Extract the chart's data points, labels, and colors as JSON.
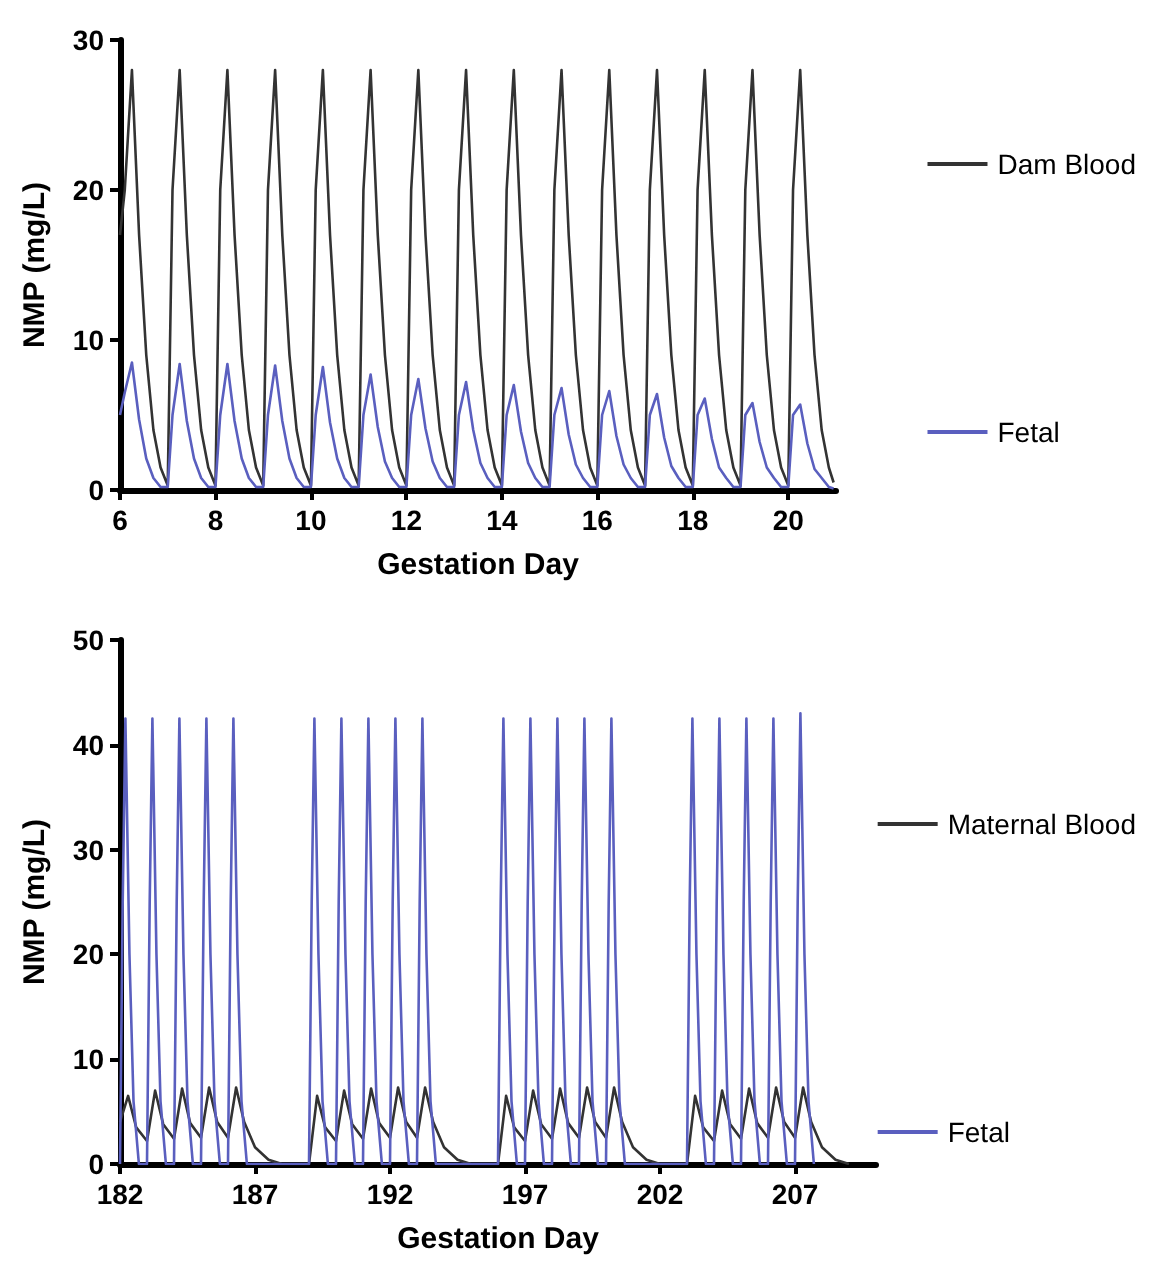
{
  "chart_data": [
    {
      "type": "line",
      "xlabel": "Gestation Day",
      "ylabel": "NMP (mg/L)",
      "xlim": [
        6,
        21
      ],
      "xticks": [
        6,
        8,
        10,
        12,
        14,
        16,
        18,
        20
      ],
      "ylim": [
        0,
        30
      ],
      "yticks": [
        0,
        10,
        20,
        30
      ],
      "grid": false,
      "legend": "right",
      "marker": "none",
      "line_style": "solid",
      "series": [
        {
          "name": "Dam Blood",
          "color": "#333333",
          "x": [
            6,
            6.1,
            6.25,
            6.4,
            6.55,
            6.7,
            6.85,
            7,
            7.1,
            7.25,
            7.4,
            7.55,
            7.7,
            7.85,
            8,
            8.1,
            8.25,
            8.4,
            8.55,
            8.7,
            8.85,
            9,
            9.1,
            9.25,
            9.4,
            9.55,
            9.7,
            9.85,
            10,
            10.1,
            10.25,
            10.4,
            10.55,
            10.7,
            10.85,
            11,
            11.1,
            11.25,
            11.4,
            11.55,
            11.7,
            11.85,
            12,
            12.1,
            12.25,
            12.4,
            12.55,
            12.7,
            12.85,
            13,
            13.1,
            13.25,
            13.4,
            13.55,
            13.7,
            13.85,
            14,
            14.1,
            14.25,
            14.4,
            14.55,
            14.7,
            14.85,
            15,
            15.1,
            15.25,
            15.4,
            15.55,
            15.7,
            15.85,
            16,
            16.1,
            16.25,
            16.4,
            16.55,
            16.7,
            16.85,
            17,
            17.1,
            17.25,
            17.4,
            17.55,
            17.7,
            17.85,
            18,
            18.1,
            18.25,
            18.4,
            18.55,
            18.7,
            18.85,
            19,
            19.1,
            19.25,
            19.4,
            19.55,
            19.7,
            19.85,
            20,
            20.1,
            20.25,
            20.4,
            20.55,
            20.7,
            20.85,
            20.95
          ],
          "values": [
            17,
            20,
            28,
            17,
            9,
            4,
            1.5,
            0.3,
            20,
            28,
            17,
            9,
            4,
            1.5,
            0.3,
            20,
            28,
            17,
            9,
            4,
            1.5,
            0.3,
            20,
            28,
            17,
            9,
            4,
            1.5,
            0.3,
            20,
            28,
            17,
            9,
            4,
            1.5,
            0.3,
            20,
            28,
            17,
            9,
            4,
            1.5,
            0.3,
            20,
            28,
            17,
            9,
            4,
            1.5,
            0.3,
            20,
            28,
            17,
            9,
            4,
            1.5,
            0.3,
            20,
            28,
            17,
            9,
            4,
            1.5,
            0.3,
            20,
            28,
            17,
            9,
            4,
            1.5,
            0.3,
            20,
            28,
            17,
            9,
            4,
            1.5,
            0.3,
            20,
            28,
            17,
            9,
            4,
            1.5,
            0.3,
            20,
            28,
            17,
            9,
            4,
            1.5,
            0.3,
            20,
            28,
            17,
            9,
            4,
            1.5,
            0.3,
            20,
            28,
            17,
            9,
            4,
            1.5,
            0.5
          ]
        },
        {
          "name": "Fetal",
          "color": "#5a5fbf",
          "x": [
            6,
            6.1,
            6.25,
            6.4,
            6.55,
            6.7,
            6.85,
            7,
            7.1,
            7.25,
            7.4,
            7.55,
            7.7,
            7.85,
            8,
            8.1,
            8.25,
            8.4,
            8.55,
            8.7,
            8.85,
            9,
            9.1,
            9.25,
            9.4,
            9.55,
            9.7,
            9.85,
            10,
            10.1,
            10.25,
            10.4,
            10.55,
            10.7,
            10.85,
            11,
            11.1,
            11.25,
            11.4,
            11.55,
            11.7,
            11.85,
            12,
            12.1,
            12.25,
            12.4,
            12.55,
            12.7,
            12.85,
            13,
            13.1,
            13.25,
            13.4,
            13.55,
            13.7,
            13.85,
            14,
            14.1,
            14.25,
            14.4,
            14.55,
            14.7,
            14.85,
            15,
            15.1,
            15.25,
            15.4,
            15.55,
            15.7,
            15.85,
            16,
            16.1,
            16.25,
            16.4,
            16.55,
            16.7,
            16.85,
            17,
            17.1,
            17.25,
            17.4,
            17.55,
            17.7,
            17.85,
            18,
            18.1,
            18.25,
            18.4,
            18.55,
            18.7,
            18.85,
            19,
            19.1,
            19.25,
            19.4,
            19.55,
            19.7,
            19.85,
            20,
            20.1,
            20.25,
            20.4,
            20.55,
            20.7,
            20.85,
            20.95
          ],
          "values": [
            5,
            6.5,
            8.5,
            4.7,
            2.1,
            0.8,
            0.2,
            0.2,
            5,
            8.4,
            4.6,
            2.1,
            0.8,
            0.2,
            0.2,
            5,
            8.4,
            4.6,
            2.1,
            0.8,
            0.2,
            0.2,
            5,
            8.3,
            4.6,
            2.1,
            0.8,
            0.2,
            0.2,
            5,
            8.2,
            4.5,
            2.1,
            0.8,
            0.2,
            0.2,
            5,
            7.7,
            4.2,
            1.9,
            0.8,
            0.2,
            0.2,
            5,
            7.4,
            4.1,
            1.9,
            0.8,
            0.2,
            0.2,
            5,
            7.2,
            4,
            1.8,
            0.8,
            0.2,
            0.2,
            5,
            7,
            3.9,
            1.8,
            0.8,
            0.2,
            0.2,
            5,
            6.8,
            3.7,
            1.7,
            0.8,
            0.2,
            0.2,
            5,
            6.6,
            3.6,
            1.7,
            0.8,
            0.2,
            0.2,
            5,
            6.4,
            3.5,
            1.6,
            0.8,
            0.2,
            0.2,
            5,
            6.1,
            3.4,
            1.5,
            0.8,
            0.2,
            0.2,
            5,
            5.8,
            3.2,
            1.5,
            0.8,
            0.2,
            0.2,
            5,
            5.7,
            3.1,
            1.4,
            0.8,
            0.2,
            0.1
          ]
        }
      ]
    },
    {
      "type": "line",
      "xlabel": "Gestation Day",
      "ylabel": "NMP (mg/L)",
      "xlim": [
        182,
        210
      ],
      "xticks": [
        182,
        187,
        192,
        197,
        202,
        207
      ],
      "ylim": [
        0,
        50
      ],
      "yticks": [
        0,
        10,
        20,
        30,
        40,
        50
      ],
      "grid": false,
      "legend": "right",
      "marker": "none",
      "line_style": "solid",
      "series": [
        {
          "name": "Maternal Blood",
          "color": "#333333",
          "x": [
            182,
            182.3,
            182.6,
            183,
            183.3,
            183.6,
            184,
            184.3,
            184.6,
            185,
            185.3,
            185.6,
            186,
            186.3,
            186.6,
            187,
            187.5,
            188,
            189,
            189.3,
            189.6,
            190,
            190.3,
            190.6,
            191,
            191.3,
            191.6,
            192,
            192.3,
            192.6,
            193,
            193.3,
            193.6,
            194,
            194.5,
            195,
            196,
            196.3,
            196.6,
            197,
            197.3,
            197.6,
            198,
            198.3,
            198.6,
            199,
            199.3,
            199.6,
            200,
            200.3,
            200.6,
            201,
            201.5,
            202,
            203,
            203.3,
            203.6,
            204,
            204.3,
            204.6,
            205,
            205.3,
            205.6,
            206,
            206.3,
            206.6,
            207,
            207.3,
            207.6,
            208,
            208.5,
            209
          ],
          "values": [
            4,
            6.5,
            3.5,
            2.2,
            7,
            3.8,
            2.4,
            7.2,
            3.9,
            2.5,
            7.3,
            4,
            2.5,
            7.3,
            4,
            1.6,
            0.4,
            0,
            0,
            6.5,
            3.5,
            2.2,
            7,
            3.8,
            2.4,
            7.2,
            3.9,
            2.5,
            7.3,
            4,
            2.5,
            7.3,
            4,
            1.6,
            0.4,
            0,
            0,
            6.5,
            3.5,
            2.2,
            7,
            3.8,
            2.4,
            7.2,
            3.9,
            2.5,
            7.3,
            4,
            2.5,
            7.3,
            4,
            1.6,
            0.4,
            0,
            0,
            6.5,
            3.5,
            2.2,
            7,
            3.8,
            2.4,
            7.2,
            3.9,
            2.5,
            7.3,
            4,
            2.5,
            7.3,
            4,
            1.6,
            0.4,
            0
          ]
        },
        {
          "name": "Fetal",
          "color": "#5a5fbf",
          "x": [
            182,
            182.1,
            182.2,
            182.35,
            182.5,
            182.7,
            183,
            183.1,
            183.2,
            183.35,
            183.5,
            183.7,
            184,
            184.1,
            184.2,
            184.35,
            184.5,
            184.7,
            185,
            185.1,
            185.2,
            185.35,
            185.5,
            185.7,
            186,
            186.1,
            186.2,
            186.35,
            186.5,
            186.7,
            189,
            189.1,
            189.2,
            189.35,
            189.5,
            189.7,
            190,
            190.1,
            190.2,
            190.35,
            190.5,
            190.7,
            191,
            191.1,
            191.2,
            191.35,
            191.5,
            191.7,
            192,
            192.1,
            192.2,
            192.35,
            192.5,
            192.7,
            193,
            193.1,
            193.2,
            193.35,
            193.5,
            193.7,
            196,
            196.1,
            196.2,
            196.35,
            196.5,
            196.7,
            197,
            197.1,
            197.2,
            197.35,
            197.5,
            197.7,
            198,
            198.1,
            198.2,
            198.35,
            198.5,
            198.7,
            199,
            199.1,
            199.2,
            199.35,
            199.5,
            199.7,
            200,
            200.1,
            200.2,
            200.35,
            200.5,
            200.7,
            203,
            203.1,
            203.2,
            203.35,
            203.5,
            203.7,
            204,
            204.1,
            204.2,
            204.35,
            204.5,
            204.7,
            205,
            205.1,
            205.2,
            205.35,
            205.5,
            205.7,
            206,
            206.1,
            206.2,
            206.35,
            206.5,
            206.7,
            207,
            207.1,
            207.2,
            207.35,
            207.5,
            207.7
          ],
          "values": [
            0,
            25,
            42.5,
            20,
            6,
            0,
            0,
            25,
            42.5,
            20,
            6,
            0,
            0,
            25,
            42.5,
            20,
            6,
            0,
            0,
            25,
            42.5,
            20,
            6,
            0,
            0,
            25,
            42.5,
            20,
            6,
            0,
            0,
            25,
            42.5,
            20,
            6,
            0,
            0,
            25,
            42.5,
            20,
            6,
            0,
            0,
            25,
            42.5,
            20,
            6,
            0,
            0,
            25,
            42.5,
            20,
            6,
            0,
            0,
            25,
            42.5,
            20,
            6,
            0,
            0,
            25,
            42.5,
            20,
            6,
            0,
            0,
            25,
            42.5,
            20,
            6,
            0,
            0,
            25,
            42.5,
            20,
            6,
            0,
            0,
            25,
            42.5,
            20,
            6,
            0,
            0,
            25,
            42.5,
            20,
            6,
            0,
            0,
            25,
            42.5,
            20,
            6,
            0,
            0,
            25,
            42.5,
            20,
            6,
            0,
            0,
            25,
            42.5,
            20,
            6,
            0,
            0,
            25,
            42.5,
            20,
            6,
            0,
            0,
            25,
            43,
            20,
            6,
            0
          ]
        }
      ]
    }
  ]
}
